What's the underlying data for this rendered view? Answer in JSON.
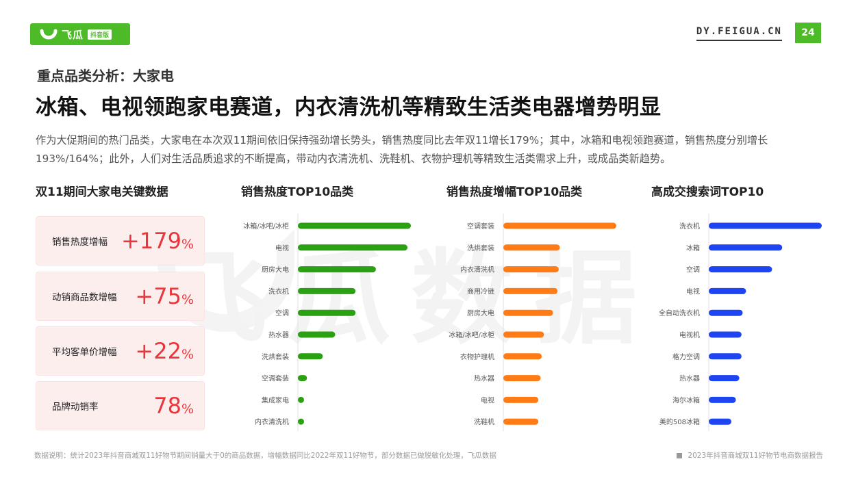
{
  "header": {
    "logo_text": "飞瓜",
    "logo_badge": "抖音版",
    "site_url": "DY.FEIGUA.CN",
    "page_number": "24"
  },
  "subtitle": "重点品类分析：大家电",
  "headline": "冰箱、电视领跑家电赛道，内衣清洗机等精致生活类电器增势明显",
  "intro": "作为大促期间的热门品类，大家电在本次双11期间依旧保持强劲增长势头，销售热度同比去年双11增长179%；其中，冰箱和电视领跑赛道，销售热度分别增长 193%/164%；此外，人们对生活品质追求的不断提高，带动内衣清洗机、洗鞋机、衣物护理机等精致生活类需求上升，或成品类新趋势。",
  "watermark": "飞瓜数据",
  "kpi": {
    "title": "双11期间大家电关键数据",
    "items": [
      {
        "label": "销售热度增幅",
        "value": "+179",
        "unit": "%"
      },
      {
        "label": "动销商品数增幅",
        "value": "+75",
        "unit": "%"
      },
      {
        "label": "平均客单价增幅",
        "value": "+22",
        "unit": "%"
      },
      {
        "label": "品牌动销率",
        "value": "78",
        "unit": "%"
      }
    ]
  },
  "colors": {
    "brand_green": "#4cbb27",
    "kpi_red": "#e8363c",
    "bar_green": "#2aa012",
    "bar_orange": "#ff7b16",
    "bar_blue": "#1f44f2"
  },
  "chart_data": [
    {
      "type": "bar",
      "orientation": "horizontal",
      "title": "销售热度TOP10品类",
      "color": "#2aa012",
      "categories": [
        "冰箱/冰吧/冰柜",
        "电视",
        "厨房大电",
        "洗衣机",
        "空调",
        "热水器",
        "洗烘套装",
        "空调套装",
        "集成家电",
        "内衣清洗机"
      ],
      "values": [
        100,
        97,
        69,
        51,
        51,
        33,
        22,
        8,
        5,
        4
      ],
      "xlim": [
        0,
        100
      ]
    },
    {
      "type": "bar",
      "orientation": "horizontal",
      "title": "销售热度增幅TOP10品类",
      "color": "#ff7b16",
      "categories": [
        "空调套装",
        "洗烘套装",
        "内衣清洗机",
        "商用冷链",
        "厨房大电",
        "冰箱/冰吧/冰柜",
        "衣物护理机",
        "热水器",
        "电视",
        "洗鞋机"
      ],
      "values": [
        100,
        50,
        49,
        48,
        44,
        36,
        34,
        33,
        31,
        31
      ],
      "xlim": [
        0,
        100
      ]
    },
    {
      "type": "bar",
      "orientation": "horizontal",
      "title": "高成交搜索词TOP10",
      "color": "#1f44f2",
      "categories": [
        "洗衣机",
        "冰箱",
        "空调",
        "电视",
        "全自动洗衣机",
        "电视机",
        "格力空调",
        "热水器",
        "海尔冰箱",
        "美的508冰箱"
      ],
      "values": [
        100,
        65,
        56,
        33,
        30,
        29,
        29,
        27,
        24,
        20
      ],
      "xlim": [
        0,
        100
      ]
    }
  ],
  "footer": {
    "note": "数据说明：统计2023年抖音商城双11好物节期间销量大于0的商品数据，增幅数据同比2022年双11好物节，部分数据已做脱敏化处理，飞瓜数据",
    "report": "2023年抖音商城双11好物节电商数据报告"
  }
}
